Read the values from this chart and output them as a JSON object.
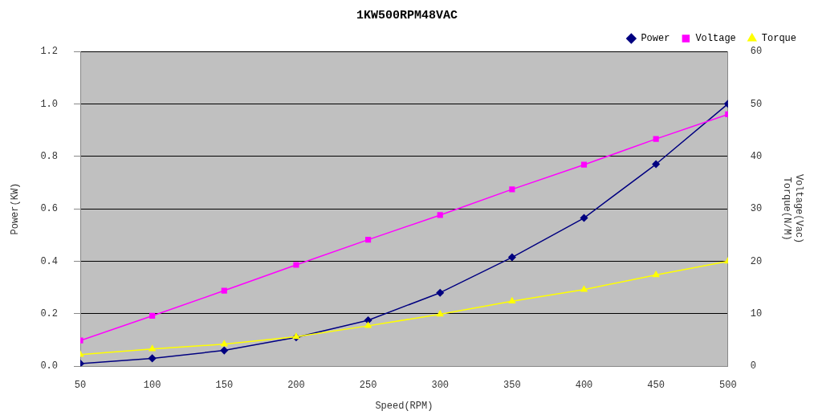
{
  "chart_data": {
    "type": "line",
    "title": "1KW500RPM48VAC",
    "xlabel": "Speed(RPM)",
    "ylabel": "Power(KW)",
    "y2label": "Voltage(Vac)\nTorque(N/M)",
    "x": [
      50,
      100,
      150,
      200,
      250,
      300,
      350,
      400,
      450,
      500
    ],
    "xlim": [
      50,
      500
    ],
    "xticks": [
      50,
      100,
      150,
      200,
      250,
      300,
      350,
      400,
      450,
      500
    ],
    "ylim": [
      0,
      1.2
    ],
    "yticks": [
      {
        "value": 0,
        "label": "0.0"
      },
      {
        "value": 0.2,
        "label": "0.2"
      },
      {
        "value": 0.4,
        "label": "0.4"
      },
      {
        "value": 0.6,
        "label": "0.6"
      },
      {
        "value": 0.8,
        "label": "0.8"
      },
      {
        "value": 1,
        "label": "1.0"
      },
      {
        "value": 1.2,
        "label": "1.2"
      }
    ],
    "y2lim": [
      0,
      60
    ],
    "y2ticks": [
      0,
      10,
      20,
      30,
      40,
      50,
      60
    ],
    "grid": "y",
    "legend": "top right",
    "series": [
      {
        "name": "Power",
        "color": "#000080",
        "marker": "diamond",
        "values": [
          0.01,
          0.03,
          0.06,
          0.11,
          0.175,
          0.28,
          0.415,
          0.565,
          0.77,
          1.0
        ]
      },
      {
        "name": "Voltage",
        "color": "#ff00ff",
        "marker": "square",
        "axis": "y2",
        "values": [
          4.9,
          9.6,
          14.4,
          19.3,
          24.1,
          28.8,
          33.7,
          38.4,
          43.3,
          48
        ]
      },
      {
        "name": "Torque",
        "color": "#ffff00",
        "marker": "triangle",
        "axis": "y2",
        "values": [
          2.2,
          3.3,
          4.2,
          5.6,
          7.7,
          9.9,
          12.4,
          14.6,
          17.4,
          20
        ]
      }
    ]
  }
}
